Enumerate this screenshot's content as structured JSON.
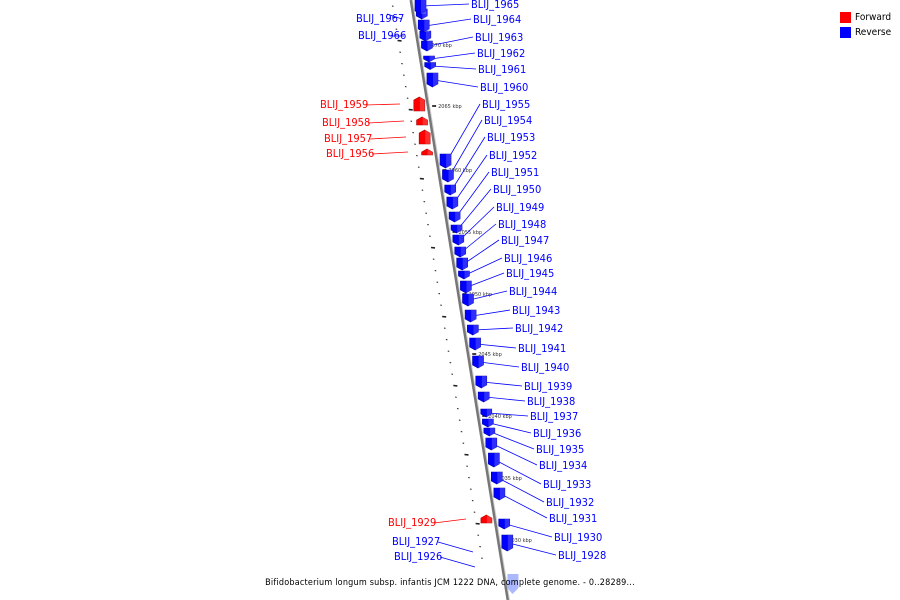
{
  "legend": {
    "forward_label": "Forward",
    "reverse_label": "Reverse",
    "forward_color": "#ff0000",
    "reverse_color": "#0000ff"
  },
  "caption": "Bifidobacterium longum subsp. infantis JCM 1222 DNA, complete genome. - 0..28289...",
  "scale_marks": [
    {
      "label": "2070 kbp"
    },
    {
      "label": "2065 kbp"
    },
    {
      "label": "2060 kbp"
    },
    {
      "label": "2055 kbp"
    },
    {
      "label": "2050 kbp"
    },
    {
      "label": "2045 kbp"
    },
    {
      "label": "2040 kbp"
    },
    {
      "label": "2035 kbp"
    },
    {
      "label": "2030 kbp"
    }
  ],
  "genes": [
    {
      "name": "BLIJ_1967",
      "strand": "reverse"
    },
    {
      "name": "BLIJ_1966",
      "strand": "reverse"
    },
    {
      "name": "BLIJ_1965",
      "strand": "reverse"
    },
    {
      "name": "BLIJ_1964",
      "strand": "reverse"
    },
    {
      "name": "BLIJ_1963",
      "strand": "reverse"
    },
    {
      "name": "BLIJ_1962",
      "strand": "reverse"
    },
    {
      "name": "BLIJ_1961",
      "strand": "reverse"
    },
    {
      "name": "BLIJ_1960",
      "strand": "reverse"
    },
    {
      "name": "BLIJ_1959",
      "strand": "forward"
    },
    {
      "name": "BLIJ_1958",
      "strand": "forward"
    },
    {
      "name": "BLIJ_1957",
      "strand": "forward"
    },
    {
      "name": "BLIJ_1956",
      "strand": "forward"
    },
    {
      "name": "BLIJ_1955",
      "strand": "reverse"
    },
    {
      "name": "BLIJ_1954",
      "strand": "reverse"
    },
    {
      "name": "BLIJ_1953",
      "strand": "reverse"
    },
    {
      "name": "BLIJ_1952",
      "strand": "reverse"
    },
    {
      "name": "BLIJ_1951",
      "strand": "reverse"
    },
    {
      "name": "BLIJ_1950",
      "strand": "reverse"
    },
    {
      "name": "BLIJ_1949",
      "strand": "reverse"
    },
    {
      "name": "BLIJ_1948",
      "strand": "reverse"
    },
    {
      "name": "BLIJ_1947",
      "strand": "reverse"
    },
    {
      "name": "BLIJ_1946",
      "strand": "reverse"
    },
    {
      "name": "BLIJ_1945",
      "strand": "reverse"
    },
    {
      "name": "BLIJ_1944",
      "strand": "reverse"
    },
    {
      "name": "BLIJ_1943",
      "strand": "reverse"
    },
    {
      "name": "BLIJ_1942",
      "strand": "reverse"
    },
    {
      "name": "BLIJ_1941",
      "strand": "reverse"
    },
    {
      "name": "BLIJ_1940",
      "strand": "reverse"
    },
    {
      "name": "BLIJ_1939",
      "strand": "reverse"
    },
    {
      "name": "BLIJ_1938",
      "strand": "reverse"
    },
    {
      "name": "BLIJ_1937",
      "strand": "reverse"
    },
    {
      "name": "BLIJ_1936",
      "strand": "reverse"
    },
    {
      "name": "BLIJ_1935",
      "strand": "reverse"
    },
    {
      "name": "BLIJ_1934",
      "strand": "reverse"
    },
    {
      "name": "BLIJ_1933",
      "strand": "reverse"
    },
    {
      "name": "BLIJ_1932",
      "strand": "reverse"
    },
    {
      "name": "BLIJ_1931",
      "strand": "reverse"
    },
    {
      "name": "BLIJ_1930",
      "strand": "reverse"
    },
    {
      "name": "BLIJ_1929",
      "strand": "forward"
    },
    {
      "name": "BLIJ_1928",
      "strand": "reverse"
    },
    {
      "name": "BLIJ_1927",
      "strand": "reverse"
    },
    {
      "name": "BLIJ_1926",
      "strand": "reverse"
    }
  ]
}
